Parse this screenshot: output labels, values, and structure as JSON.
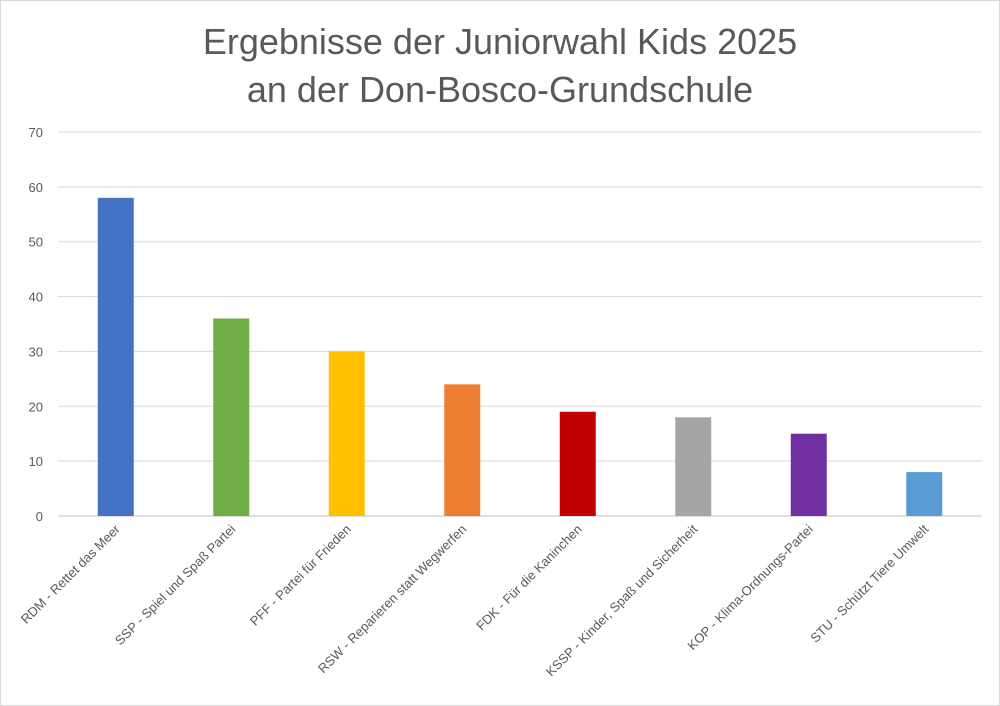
{
  "chart_data": {
    "type": "bar",
    "title_line1": "Ergebnisse der Juniorwahl Kids 2025",
    "title_line2": "an der Don-Bosco-Grundschule",
    "categories": [
      "RDM - Rettet das Meer",
      "SSP - Spiel und Spaß Partei",
      "PFF - Partei für Frieden",
      "RSW - Reparieren statt Wegwerfen",
      "FDK - Für die Kaninchen",
      "KSSP - Kinder, Spaß und Sicherheit",
      "KOP - Klima-Ordnungs-Partei",
      "STU - Schützt Tiere Umwelt"
    ],
    "values": [
      58,
      36,
      30,
      24,
      19,
      18,
      15,
      8
    ],
    "colors": [
      "#4472C4",
      "#70AD47",
      "#FFC000",
      "#ED7D31",
      "#C00000",
      "#A5A5A5",
      "#7030A0",
      "#5B9BD5"
    ],
    "ylim": [
      0,
      70
    ],
    "yticks": [
      0,
      10,
      20,
      30,
      40,
      50,
      60,
      70
    ],
    "grid": true,
    "legend": "none"
  }
}
